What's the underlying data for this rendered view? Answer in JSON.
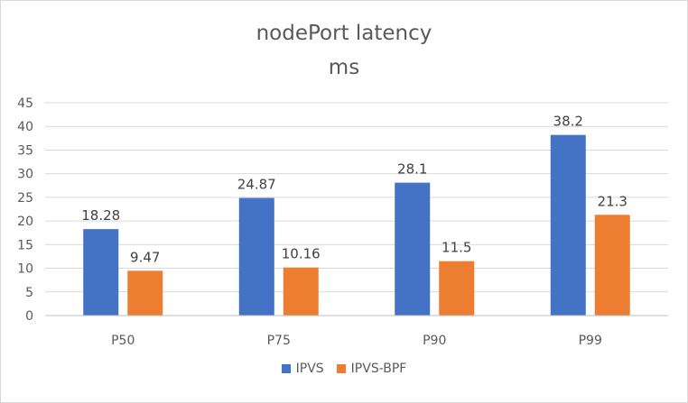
{
  "chart_data": {
    "type": "bar",
    "title": "nodePort latency",
    "subtitle": "ms",
    "categories": [
      "P50",
      "P75",
      "P90",
      "P99"
    ],
    "series": [
      {
        "name": "IPVS",
        "color": "#4472c4",
        "values": [
          18.28,
          24.87,
          28.1,
          38.2
        ],
        "labels": [
          "18.28",
          "24.87",
          "28.1",
          "38.2"
        ]
      },
      {
        "name": "IPVS-BPF",
        "color": "#ed7d31",
        "values": [
          9.47,
          10.16,
          11.5,
          21.3
        ],
        "labels": [
          "9.47",
          "10.16",
          "11.5",
          "21.3"
        ]
      }
    ],
    "ylim": [
      0,
      45
    ],
    "yticks": [
      0,
      5,
      10,
      15,
      20,
      25,
      30,
      35,
      40,
      45
    ],
    "grid": true,
    "legend": "bottom"
  }
}
